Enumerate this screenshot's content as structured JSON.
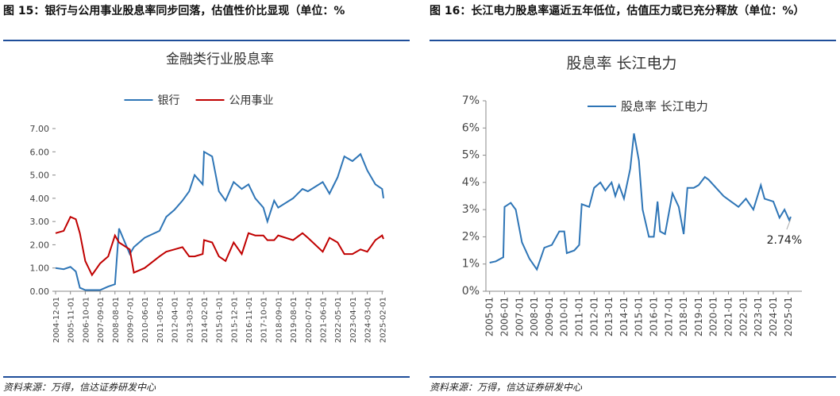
{
  "figures": [
    {
      "caption": "图 15：银行与公用事业股息率同步回落，估值性价比显现（单位：%",
      "source": "资料来源：万得，信达证券研发中心"
    },
    {
      "caption": "图 16：长江电力股息率逼近五年低位，估值压力或已充分释放（单位：%）",
      "source": "资料来源：万得，信达证券研发中心"
    }
  ],
  "chart_data": [
    {
      "type": "line",
      "title": "金融类行业股息率",
      "legend": "top",
      "x": [
        "2004-12-01",
        "2005-06-01",
        "2005-11-01",
        "2006-03-01",
        "2006-06-01",
        "2006-10-01",
        "2007-03-01",
        "2007-09-01",
        "2008-03-01",
        "2008-08-01",
        "2008-11-01",
        "2009-07-01",
        "2009-10-01",
        "2010-06-01",
        "2011-05-01",
        "2011-10-01",
        "2012-04-01",
        "2012-10-01",
        "2013-03-01",
        "2013-07-01",
        "2014-01-01",
        "2014-02-01",
        "2014-08-01",
        "2015-01-01",
        "2015-06-01",
        "2015-12-01",
        "2016-06-01",
        "2016-11-01",
        "2017-04-01",
        "2017-10-01",
        "2018-01-01",
        "2018-06-01",
        "2018-09-01",
        "2019-08-01",
        "2020-03-01",
        "2020-07-01",
        "2021-06-01",
        "2021-11-01",
        "2022-05-01",
        "2022-10-01",
        "2023-04-01",
        "2023-10-01",
        "2024-03-01",
        "2024-09-01",
        "2025-02-01",
        "2025-03-01"
      ],
      "series": [
        {
          "name": "银行",
          "color": "#2e75b6",
          "values": [
            1.0,
            0.95,
            1.05,
            0.85,
            0.15,
            0.05,
            0.05,
            0.05,
            0.2,
            0.3,
            2.7,
            1.6,
            1.9,
            2.3,
            2.6,
            3.2,
            3.5,
            3.9,
            4.3,
            5.0,
            4.6,
            6.0,
            5.8,
            4.3,
            3.9,
            4.7,
            4.4,
            4.6,
            4.0,
            3.6,
            3.0,
            3.9,
            3.6,
            4.0,
            4.4,
            4.3,
            4.7,
            4.2,
            4.9,
            5.8,
            5.6,
            5.9,
            5.2,
            4.6,
            4.4,
            4.0
          ]
        },
        {
          "name": "公用事业",
          "color": "#c00000",
          "values": [
            2.5,
            2.6,
            3.2,
            3.1,
            2.5,
            1.3,
            0.7,
            1.2,
            1.5,
            2.4,
            2.1,
            1.8,
            0.8,
            1.0,
            1.5,
            1.7,
            1.8,
            1.9,
            1.5,
            1.5,
            1.6,
            2.2,
            2.1,
            1.5,
            1.3,
            2.1,
            1.6,
            2.5,
            2.4,
            2.4,
            2.2,
            2.2,
            2.4,
            2.2,
            2.5,
            2.3,
            1.7,
            2.3,
            2.1,
            1.6,
            1.6,
            1.8,
            1.7,
            2.2,
            2.4,
            2.25
          ]
        }
      ],
      "xlim": [
        "2004-12-01",
        "2025-03-01"
      ],
      "xticks": [
        "2004-12-01",
        "2005-11-01",
        "2006-10-01",
        "2007-09-01",
        "2008-08-01",
        "2009-07-01",
        "2010-06-01",
        "2011-05-01",
        "2012-04-01",
        "2013-03-01",
        "2014-02-01",
        "2015-01-01",
        "2015-12-01",
        "2016-11-01",
        "2017-10-01",
        "2018-09-01",
        "2019-08-01",
        "2020-07-01",
        "2021-06-01",
        "2022-05-01",
        "2023-04-01",
        "2024-03-01",
        "2025-02-01"
      ],
      "ylim": [
        0,
        7
      ],
      "yticks": [
        {
          "value": 0,
          "label": "0.00"
        },
        {
          "value": 1,
          "label": "1.00"
        },
        {
          "value": 2,
          "label": "2.00"
        },
        {
          "value": 3,
          "label": "3.00"
        },
        {
          "value": 4,
          "label": "4.00"
        },
        {
          "value": 5,
          "label": "5.00"
        },
        {
          "value": 6,
          "label": "6.00"
        },
        {
          "value": 7,
          "label": "7.00"
        }
      ]
    },
    {
      "type": "line",
      "title": "股息率 长江电力",
      "legend": "upper-left",
      "x": [
        "2005-01",
        "2005-06",
        "2005-12",
        "2006-01",
        "2006-06",
        "2006-10",
        "2007-03",
        "2007-09",
        "2008-03",
        "2008-09",
        "2009-03",
        "2009-09",
        "2010-01",
        "2010-03",
        "2010-09",
        "2011-01",
        "2011-03",
        "2011-09",
        "2012-01",
        "2012-06",
        "2012-10",
        "2013-03",
        "2013-06",
        "2013-09",
        "2014-01",
        "2014-06",
        "2014-09",
        "2015-01",
        "2015-04",
        "2015-09",
        "2016-01",
        "2016-04",
        "2016-06",
        "2016-10",
        "2017-04",
        "2017-09",
        "2018-01",
        "2018-04",
        "2018-09",
        "2019-01",
        "2019-06",
        "2019-09",
        "2020-03",
        "2020-09",
        "2021-03",
        "2021-09",
        "2022-03",
        "2022-09",
        "2023-03",
        "2023-06",
        "2024-01",
        "2024-06",
        "2024-10",
        "2025-02",
        "2025-03"
      ],
      "series": [
        {
          "name": "股息率 长江电力",
          "color": "#2e75b6",
          "values": [
            1.05,
            1.1,
            1.25,
            3.1,
            3.25,
            3.0,
            1.8,
            1.2,
            0.8,
            1.6,
            1.7,
            2.2,
            2.2,
            1.4,
            1.5,
            1.7,
            3.2,
            3.1,
            3.8,
            4.0,
            3.7,
            4.0,
            3.5,
            3.9,
            3.4,
            4.5,
            5.8,
            4.8,
            3.0,
            2.0,
            2.0,
            3.3,
            2.2,
            2.1,
            3.6,
            3.1,
            2.1,
            3.8,
            3.8,
            3.9,
            4.2,
            4.1,
            3.8,
            3.5,
            3.3,
            3.1,
            3.4,
            3.0,
            3.9,
            3.4,
            3.3,
            2.7,
            3.0,
            2.6,
            2.74
          ],
          "value_labels": [
            null,
            null,
            null,
            null,
            null,
            null,
            null,
            null,
            null,
            null,
            null,
            null,
            null,
            null,
            null,
            null,
            null,
            null,
            null,
            null,
            null,
            null,
            null,
            null,
            null,
            null,
            null,
            null,
            null,
            null,
            null,
            null,
            null,
            null,
            null,
            null,
            null,
            null,
            null,
            null,
            null,
            null,
            null,
            null,
            null,
            null,
            null,
            null,
            null,
            null,
            null,
            null,
            null,
            null,
            "2.74%"
          ]
        }
      ],
      "xlim": [
        "2004-10",
        "2025-12"
      ],
      "xticks": [
        "2005-01",
        "2006-01",
        "2007-01",
        "2008-01",
        "2009-01",
        "2010-01",
        "2011-01",
        "2012-01",
        "2013-01",
        "2014-01",
        "2015-01",
        "2016-01",
        "2017-01",
        "2018-01",
        "2019-01",
        "2020-01",
        "2021-01",
        "2022-01",
        "2023-01",
        "2024-01",
        "2025-01"
      ],
      "ylim": [
        0,
        7
      ],
      "yticks": [
        {
          "value": 0,
          "label": "0%"
        },
        {
          "value": 1,
          "label": "1%"
        },
        {
          "value": 2,
          "label": "2%"
        },
        {
          "value": 3,
          "label": "3%"
        },
        {
          "value": 4,
          "label": "4%"
        },
        {
          "value": 5,
          "label": "5%"
        },
        {
          "value": 6,
          "label": "6%"
        },
        {
          "value": 7,
          "label": "7%"
        }
      ]
    }
  ]
}
